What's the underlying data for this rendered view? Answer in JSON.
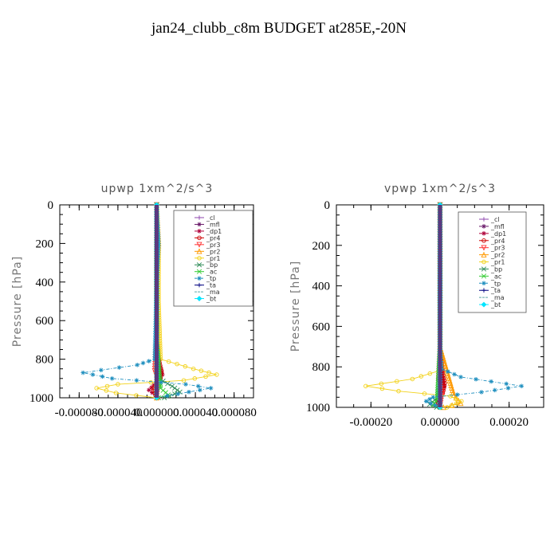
{
  "page": {
    "title": "jan24_clubb_c8m  BUDGET at285E,-20N"
  },
  "chart_data": [
    {
      "type": "line",
      "title": "upwp   1xm^2/s^3",
      "ylabel": "Pressure [hPa]",
      "xlabel": "",
      "xlim": [
        -0.0001,
        0.0001
      ],
      "ylim": [
        1000,
        0
      ],
      "y_inverted": true,
      "x_ticks": [
        -8e-05,
        -4e-05,
        0.0,
        4e-05,
        8e-05
      ],
      "x_tick_labels": [
        "-0.000080",
        "-0.000040",
        "0.000000",
        "0.000040",
        "0.000080"
      ],
      "y_ticks": [
        0,
        200,
        400,
        600,
        800,
        1000
      ],
      "y_tick_labels": [
        "0",
        "200",
        "400",
        "600",
        "800",
        "1000"
      ],
      "legend_placement": "top-right",
      "series": [
        {
          "name": "_cl",
          "color": "#8e44ad",
          "marker": "+",
          "points": [
            [
              0,
              0
            ],
            [
              0,
              400
            ],
            [
              0,
              800
            ],
            [
              0,
              1000
            ]
          ]
        },
        {
          "name": "_mfl",
          "color": "#6a1b6a",
          "marker": "*",
          "points": [
            [
              0,
              0
            ],
            [
              0,
              400
            ],
            [
              0,
              800
            ],
            [
              0,
              1000
            ]
          ]
        },
        {
          "name": "_dp1",
          "color": "#b0003a",
          "marker": "*",
          "points": [
            [
              0,
              0
            ],
            [
              0,
              300
            ],
            [
              0,
              700
            ],
            [
              2e-06,
              820
            ],
            [
              6e-06,
              880
            ],
            [
              0,
              920
            ],
            [
              -8e-06,
              960
            ],
            [
              2e-06,
              1000
            ]
          ]
        },
        {
          "name": "_pr4",
          "color": "#cc0000",
          "marker": "o",
          "points": [
            [
              0,
              0
            ],
            [
              0,
              700
            ],
            [
              3e-06,
              820
            ],
            [
              5e-06,
              860
            ],
            [
              4e-06,
              900
            ],
            [
              -4e-06,
              950
            ],
            [
              0,
              1000
            ]
          ]
        },
        {
          "name": "_pr3",
          "color": "#ff3333",
          "marker": "v",
          "points": [
            [
              0,
              0
            ],
            [
              0,
              700
            ],
            [
              -2e-06,
              860
            ],
            [
              2e-06,
              920
            ],
            [
              0,
              1000
            ]
          ]
        },
        {
          "name": "_pr2",
          "color": "#ff9900",
          "marker": "^",
          "points": [
            [
              0,
              0
            ],
            [
              2e-06,
              200
            ],
            [
              0,
              400
            ],
            [
              0,
              1000
            ]
          ]
        },
        {
          "name": "_pr1",
          "color": "#f2d21b",
          "marker": "o",
          "points": [
            [
              0,
              0
            ],
            [
              2e-06,
              200
            ],
            [
              2e-06,
              500
            ],
            [
              4e-06,
              800
            ],
            [
              3.8e-05,
              850
            ],
            [
              6.2e-05,
              880
            ],
            [
              2.8e-05,
              910
            ],
            [
              -4e-05,
              930
            ],
            [
              -6.2e-05,
              950
            ],
            [
              -4.2e-05,
              975
            ],
            [
              0,
              1000
            ]
          ]
        },
        {
          "name": "_bp",
          "color": "#2e8b57",
          "marker": "x",
          "points": [
            [
              0,
              0
            ],
            [
              0,
              700
            ],
            [
              2e-06,
              900
            ],
            [
              1.6e-05,
              940
            ],
            [
              2.4e-05,
              970
            ],
            [
              8e-06,
              1000
            ]
          ]
        },
        {
          "name": "_ac",
          "color": "#33cc33",
          "marker": "x",
          "points": [
            [
              0,
              0
            ],
            [
              0,
              700
            ],
            [
              4e-06,
              950
            ],
            [
              1.2e-05,
              985
            ],
            [
              2e-06,
              1000
            ]
          ]
        },
        {
          "name": "_tp",
          "color": "#1f8fbf",
          "marker": "*",
          "points": [
            [
              0,
              0
            ],
            [
              2e-06,
              200
            ],
            [
              0,
              400
            ],
            [
              -2e-06,
              800
            ],
            [
              -2e-05,
              830
            ],
            [
              -7.6e-05,
              870
            ],
            [
              -4.6e-05,
              900
            ],
            [
              3e-05,
              930
            ],
            [
              5.6e-05,
              950
            ],
            [
              2.2e-05,
              980
            ],
            [
              0,
              1000
            ]
          ]
        },
        {
          "name": "_ta",
          "color": "#000080",
          "marker": "+",
          "points": [
            [
              0,
              0
            ],
            [
              0,
              500
            ],
            [
              0,
              1000
            ]
          ]
        },
        {
          "name": "_ma",
          "color": "#5fa8a8",
          "marker": "",
          "points": [
            [
              0,
              0
            ],
            [
              0,
              500
            ],
            [
              0,
              1000
            ]
          ]
        },
        {
          "name": "_bt",
          "color": "#00e5ff",
          "marker": "D",
          "points": [
            [
              0,
              0
            ],
            [
              0,
              500
            ],
            [
              0,
              1000
            ]
          ]
        }
      ]
    },
    {
      "type": "line",
      "title": "vpwp   1xm^2/s^3",
      "ylabel": "Pressure [hPa]",
      "xlabel": "",
      "xlim": [
        -0.0003,
        0.0003
      ],
      "ylim": [
        1000,
        0
      ],
      "y_inverted": true,
      "x_ticks": [
        -0.0002,
        0.0,
        0.0002
      ],
      "x_tick_labels": [
        "-0.00020",
        "0.00000",
        "0.00020"
      ],
      "y_ticks": [
        0,
        200,
        400,
        600,
        800,
        1000
      ],
      "y_tick_labels": [
        "0",
        "200",
        "400",
        "600",
        "800",
        "1000"
      ],
      "legend_placement": "top-right",
      "series": [
        {
          "name": "_cl",
          "color": "#8e44ad",
          "marker": "+",
          "points": [
            [
              0,
              0
            ],
            [
              0,
              400
            ],
            [
              0,
              800
            ],
            [
              0,
              1000
            ]
          ]
        },
        {
          "name": "_mfl",
          "color": "#6a1b6a",
          "marker": "*",
          "points": [
            [
              0,
              0
            ],
            [
              0,
              400
            ],
            [
              0,
              800
            ],
            [
              0,
              1000
            ]
          ]
        },
        {
          "name": "_dp1",
          "color": "#b0003a",
          "marker": "*",
          "points": [
            [
              0,
              0
            ],
            [
              0,
              700
            ],
            [
              6e-06,
              840
            ],
            [
              1.2e-05,
              900
            ],
            [
              -8e-06,
              960
            ],
            [
              0,
              1000
            ]
          ]
        },
        {
          "name": "_pr4",
          "color": "#cc0000",
          "marker": "o",
          "points": [
            [
              0,
              0
            ],
            [
              0,
              700
            ],
            [
              8e-06,
              830
            ],
            [
              1.4e-05,
              880
            ],
            [
              8e-06,
              930
            ],
            [
              -8e-06,
              970
            ],
            [
              0,
              1000
            ]
          ]
        },
        {
          "name": "_pr3",
          "color": "#ff3333",
          "marker": "v",
          "points": [
            [
              0,
              0
            ],
            [
              0,
              700
            ],
            [
              -4e-06,
              870
            ],
            [
              6e-06,
              930
            ],
            [
              0,
              1000
            ]
          ]
        },
        {
          "name": "_pr2",
          "color": "#ff9900",
          "marker": "^",
          "points": [
            [
              0,
              0
            ],
            [
              0,
              700
            ],
            [
              4e-05,
              940
            ],
            [
              6e-05,
              980
            ],
            [
              1e-05,
              1000
            ]
          ]
        },
        {
          "name": "_pr1",
          "color": "#f2d21b",
          "marker": "o",
          "points": [
            [
              0,
              0
            ],
            [
              0,
              700
            ],
            [
              -4e-06,
              820
            ],
            [
              -8e-05,
              860
            ],
            [
              -0.000215,
              895
            ],
            [
              -0.00012,
              920
            ],
            [
              3e-05,
              945
            ],
            [
              6.2e-05,
              970
            ],
            [
              2e-05,
              1000
            ]
          ]
        },
        {
          "name": "_bp",
          "color": "#2e8b57",
          "marker": "x",
          "points": [
            [
              0,
              0
            ],
            [
              0,
              700
            ],
            [
              -6e-06,
              950
            ],
            [
              -3e-05,
              985
            ],
            [
              -1e-05,
              1000
            ]
          ]
        },
        {
          "name": "_ac",
          "color": "#33cc33",
          "marker": "x",
          "points": [
            [
              0,
              0
            ],
            [
              0,
              700
            ],
            [
              -8e-06,
              960
            ],
            [
              -2e-05,
              990
            ],
            [
              0,
              1000
            ]
          ]
        },
        {
          "name": "_tp",
          "color": "#1f8fbf",
          "marker": "*",
          "points": [
            [
              0,
              0
            ],
            [
              0,
              700
            ],
            [
              4e-06,
              810
            ],
            [
              6e-05,
              850
            ],
            [
              0.000236,
              895
            ],
            [
              0.00012,
              925
            ],
            [
              -2e-05,
              950
            ],
            [
              -4e-05,
              970
            ],
            [
              0,
              1000
            ]
          ]
        },
        {
          "name": "_ta",
          "color": "#000080",
          "marker": "+",
          "points": [
            [
              0,
              0
            ],
            [
              0,
              500
            ],
            [
              0,
              1000
            ]
          ]
        },
        {
          "name": "_ma",
          "color": "#5fa8a8",
          "marker": "",
          "points": [
            [
              0,
              0
            ],
            [
              0,
              500
            ],
            [
              0,
              1000
            ]
          ]
        },
        {
          "name": "_bt",
          "color": "#00e5ff",
          "marker": "D",
          "points": [
            [
              0,
              0
            ],
            [
              0,
              500
            ],
            [
              0,
              1000
            ]
          ]
        }
      ]
    }
  ]
}
